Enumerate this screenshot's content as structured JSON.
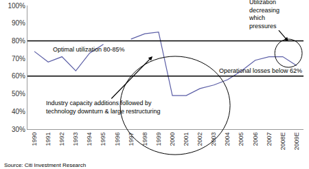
{
  "chart_data": {
    "type": "line",
    "categories": [
      "1990",
      "1991",
      "1992",
      "1993",
      "1994",
      "1995",
      "1996",
      "1997",
      "1998",
      "1999",
      "2000",
      "2001",
      "2002",
      "2003",
      "2004",
      "2005",
      "2006",
      "2007",
      "2008E",
      "2009E"
    ],
    "values": [
      74,
      68,
      71,
      63,
      73,
      78,
      null,
      81,
      84,
      85,
      49,
      49,
      53,
      55,
      58,
      63,
      69,
      71,
      71,
      66
    ],
    "color": "#5b5ea6",
    "ylim": [
      30,
      100
    ],
    "yticks": [
      {
        "value": 30,
        "label": "30%"
      },
      {
        "value": 40,
        "label": "40%"
      },
      {
        "value": 50,
        "label": "50%"
      },
      {
        "value": 60,
        "label": "60%"
      },
      {
        "value": 70,
        "label": "70%"
      },
      {
        "value": 80,
        "label": "80%"
      },
      {
        "value": 90,
        "label": "90%"
      },
      {
        "value": 100,
        "label": "100%"
      }
    ],
    "grid": false,
    "reference_lines": [
      80,
      60
    ],
    "annotations": [
      "Optimal utilization 80-85%",
      "Industry capacity additions followed by technology downturn & large restructuring",
      "Operational losses below 62%",
      "Utilization decreasing which pressures"
    ],
    "source": "Source: Citi Investment Research"
  }
}
